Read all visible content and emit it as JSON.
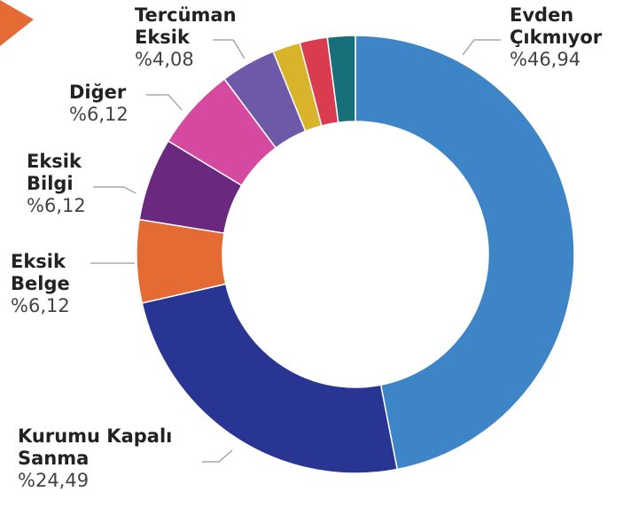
{
  "chart_data": {
    "type": "donut",
    "categories": [
      "Evden Çıkmıyor",
      "Kurumu Kapalı Sanma",
      "Eksik Belge",
      "Eksik Bilgi",
      "Diğer",
      "Tercüman Eksik",
      null,
      null,
      null
    ],
    "values": [
      46.94,
      24.49,
      6.12,
      6.12,
      6.12,
      4.08,
      2.04,
      2.04,
      2.05
    ],
    "value_labels": [
      "%46,94",
      "%24,49",
      "%6,12",
      "%6,12",
      "%6,12",
      "%4,08",
      null,
      null,
      null
    ],
    "colors": [
      "#3d85c6",
      "#283593",
      "#e56b35",
      "#6a287e",
      "#d54aa0",
      "#6e58a8",
      "#d9b42a",
      "#d93b4f",
      "#176f7a"
    ]
  }
}
